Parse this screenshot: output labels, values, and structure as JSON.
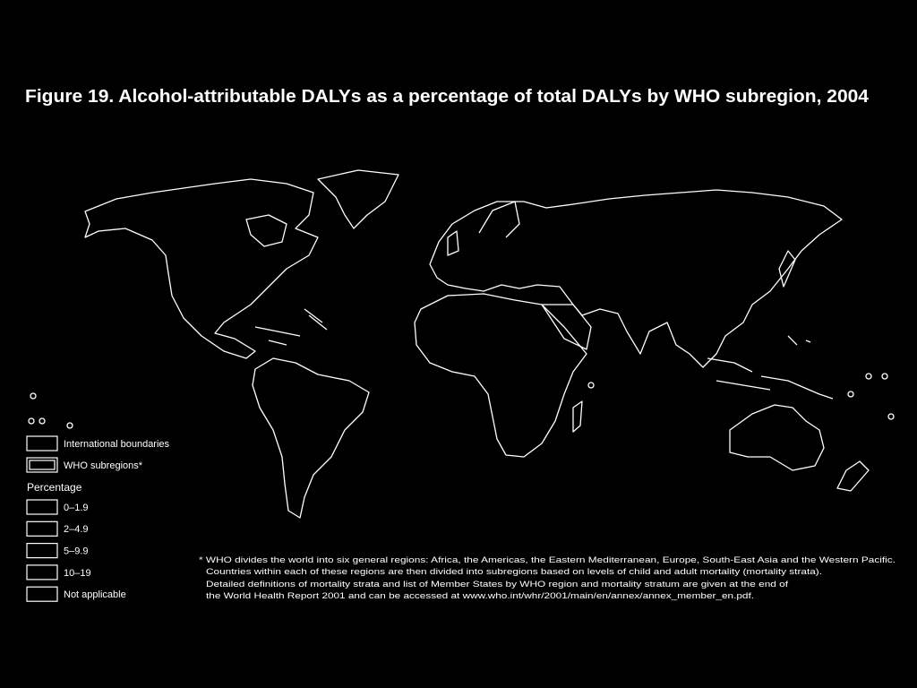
{
  "header": {
    "title": "Figure 19. Alcohol-attributable DALYs as a percentage of total DALYs by WHO subregion, 2004"
  },
  "legend": {
    "boundaries": [
      "International boundaries",
      "WHO subregions*"
    ],
    "percentage_title": "Percentage",
    "items": [
      "0–1.9",
      "2–4.9",
      "5–9.9",
      "10–19",
      "Not applicable"
    ]
  },
  "footnote": {
    "lines": [
      "* WHO divides the world into six general regions: Africa, the Americas, the Eastern Mediterranean, Europe, South-East Asia and the Western Pacific.",
      "Countries within each of these regions are then divided into subregions based on levels of child and adult mortality (mortality strata).",
      "Detailed definitions of mortality strata and list of Member States by WHO region and mortality stratum are given at the end of",
      "the World Health Report 2001 and can be accessed at www.who.int/whr/2001/main/en/annex/annex_member_en.pdf."
    ]
  }
}
